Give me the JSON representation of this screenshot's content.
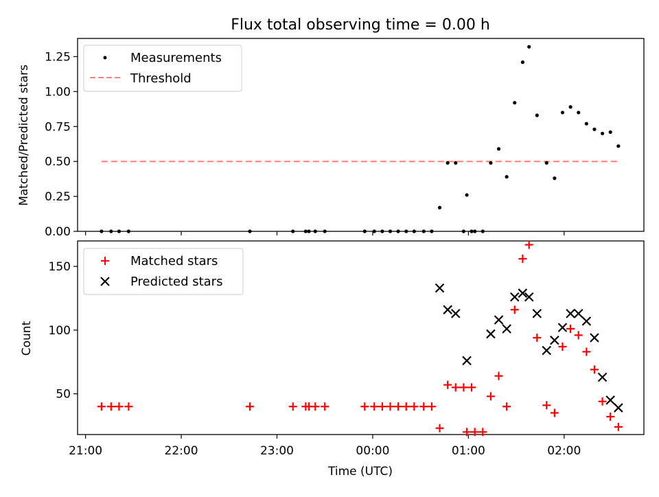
{
  "title": "Flux total observing time = 0.00 h",
  "chart_data": [
    {
      "type": "scatter",
      "panel": "top",
      "xlabel": "",
      "ylabel": "Matched/Predicted stars",
      "xlim": [
        "20:55",
        "02:50"
      ],
      "ylim": [
        0,
        1.38
      ],
      "yticks": [
        "0.00",
        "0.25",
        "0.50",
        "0.75",
        "1.00",
        "1.25"
      ],
      "legend_position": "upper-left",
      "series": [
        {
          "name": "Measurements",
          "kind": "scatter",
          "marker": "dot",
          "color": "#000000",
          "points": [
            [
              "21:10",
              0
            ],
            [
              "21:16",
              0
            ],
            [
              "21:21",
              0
            ],
            [
              "21:27",
              0
            ],
            [
              "22:43",
              0
            ],
            [
              "23:10",
              0
            ],
            [
              "23:18",
              0
            ],
            [
              "23:20",
              0
            ],
            [
              "23:24",
              0
            ],
            [
              "23:30",
              0
            ],
            [
              "23:55",
              0
            ],
            [
              "00:01",
              0
            ],
            [
              "00:06",
              0
            ],
            [
              "00:11",
              0
            ],
            [
              "00:16",
              0
            ],
            [
              "00:21",
              0
            ],
            [
              "00:26",
              0
            ],
            [
              "00:32",
              0
            ],
            [
              "00:37",
              0
            ],
            [
              "00:42",
              0.17
            ],
            [
              "00:47",
              0.49
            ],
            [
              "00:52",
              0.49
            ],
            [
              "00:57",
              0
            ],
            [
              "01:02",
              0
            ],
            [
              "00:59",
              0.26
            ],
            [
              "01:04",
              0
            ],
            [
              "01:09",
              0
            ],
            [
              "01:14",
              0.49
            ],
            [
              "01:19",
              0.59
            ],
            [
              "01:24",
              0.39
            ],
            [
              "01:29",
              0.92
            ],
            [
              "01:34",
              1.21
            ],
            [
              "01:38",
              1.32
            ],
            [
              "01:43",
              0.83
            ],
            [
              "01:49",
              0.49
            ],
            [
              "01:54",
              0.38
            ],
            [
              "01:59",
              0.85
            ],
            [
              "02:04",
              0.89
            ],
            [
              "02:09",
              0.85
            ],
            [
              "02:14",
              0.77
            ],
            [
              "02:19",
              0.73
            ],
            [
              "02:24",
              0.7
            ],
            [
              "02:29",
              0.71
            ],
            [
              "02:34",
              0.61
            ]
          ]
        },
        {
          "name": "Threshold",
          "kind": "line",
          "style": "dashed",
          "color": "#ff7f7f",
          "points": [
            [
              "21:10",
              0.5
            ],
            [
              "02:34",
              0.5
            ]
          ]
        }
      ]
    },
    {
      "type": "scatter",
      "panel": "bottom",
      "xlabel": "Time (UTC)",
      "ylabel": "Count",
      "xlim": [
        "20:55",
        "02:50"
      ],
      "ylim": [
        18,
        170
      ],
      "xticks": [
        "21:00",
        "22:00",
        "23:00",
        "00:00",
        "01:00",
        "02:00"
      ],
      "yticks": [
        "50",
        "100",
        "150"
      ],
      "legend_position": "upper-left",
      "series": [
        {
          "name": "Matched stars",
          "marker": "plus",
          "color": "#ff0000",
          "points": [
            [
              "21:10",
              40
            ],
            [
              "21:16",
              40
            ],
            [
              "21:21",
              40
            ],
            [
              "21:27",
              40
            ],
            [
              "22:43",
              40
            ],
            [
              "23:10",
              40
            ],
            [
              "23:18",
              40
            ],
            [
              "23:20",
              40
            ],
            [
              "23:24",
              40
            ],
            [
              "23:30",
              40
            ],
            [
              "23:55",
              40
            ],
            [
              "00:01",
              40
            ],
            [
              "00:06",
              40
            ],
            [
              "00:11",
              40
            ],
            [
              "00:16",
              40
            ],
            [
              "00:21",
              40
            ],
            [
              "00:26",
              40
            ],
            [
              "00:32",
              40
            ],
            [
              "00:37",
              40
            ],
            [
              "00:42",
              23
            ],
            [
              "00:47",
              57
            ],
            [
              "00:52",
              55
            ],
            [
              "00:57",
              55
            ],
            [
              "01:02",
              55
            ],
            [
              "00:59",
              20
            ],
            [
              "01:04",
              20
            ],
            [
              "01:09",
              20
            ],
            [
              "01:14",
              48
            ],
            [
              "01:19",
              64
            ],
            [
              "01:24",
              40
            ],
            [
              "01:29",
              116
            ],
            [
              "01:34",
              156
            ],
            [
              "01:38",
              167
            ],
            [
              "01:43",
              94
            ],
            [
              "01:49",
              41
            ],
            [
              "01:54",
              35
            ],
            [
              "01:59",
              87
            ],
            [
              "02:04",
              101
            ],
            [
              "02:09",
              96
            ],
            [
              "02:14",
              83
            ],
            [
              "02:19",
              69
            ],
            [
              "02:24",
              44
            ],
            [
              "02:29",
              32
            ],
            [
              "02:34",
              24
            ]
          ]
        },
        {
          "name": "Predicted stars",
          "marker": "x",
          "color": "#000000",
          "points": [
            [
              "00:42",
              133
            ],
            [
              "00:47",
              116
            ],
            [
              "00:52",
              113
            ],
            [
              "00:59",
              76
            ],
            [
              "01:14",
              97
            ],
            [
              "01:19",
              108
            ],
            [
              "01:24",
              101
            ],
            [
              "01:29",
              126
            ],
            [
              "01:34",
              129
            ],
            [
              "01:38",
              126
            ],
            [
              "01:43",
              113
            ],
            [
              "01:49",
              84
            ],
            [
              "01:54",
              92
            ],
            [
              "01:59",
              102
            ],
            [
              "02:04",
              113
            ],
            [
              "02:09",
              113
            ],
            [
              "02:14",
              107
            ],
            [
              "02:19",
              94
            ],
            [
              "02:24",
              63
            ],
            [
              "02:29",
              45
            ],
            [
              "02:34",
              39
            ]
          ]
        }
      ]
    }
  ]
}
